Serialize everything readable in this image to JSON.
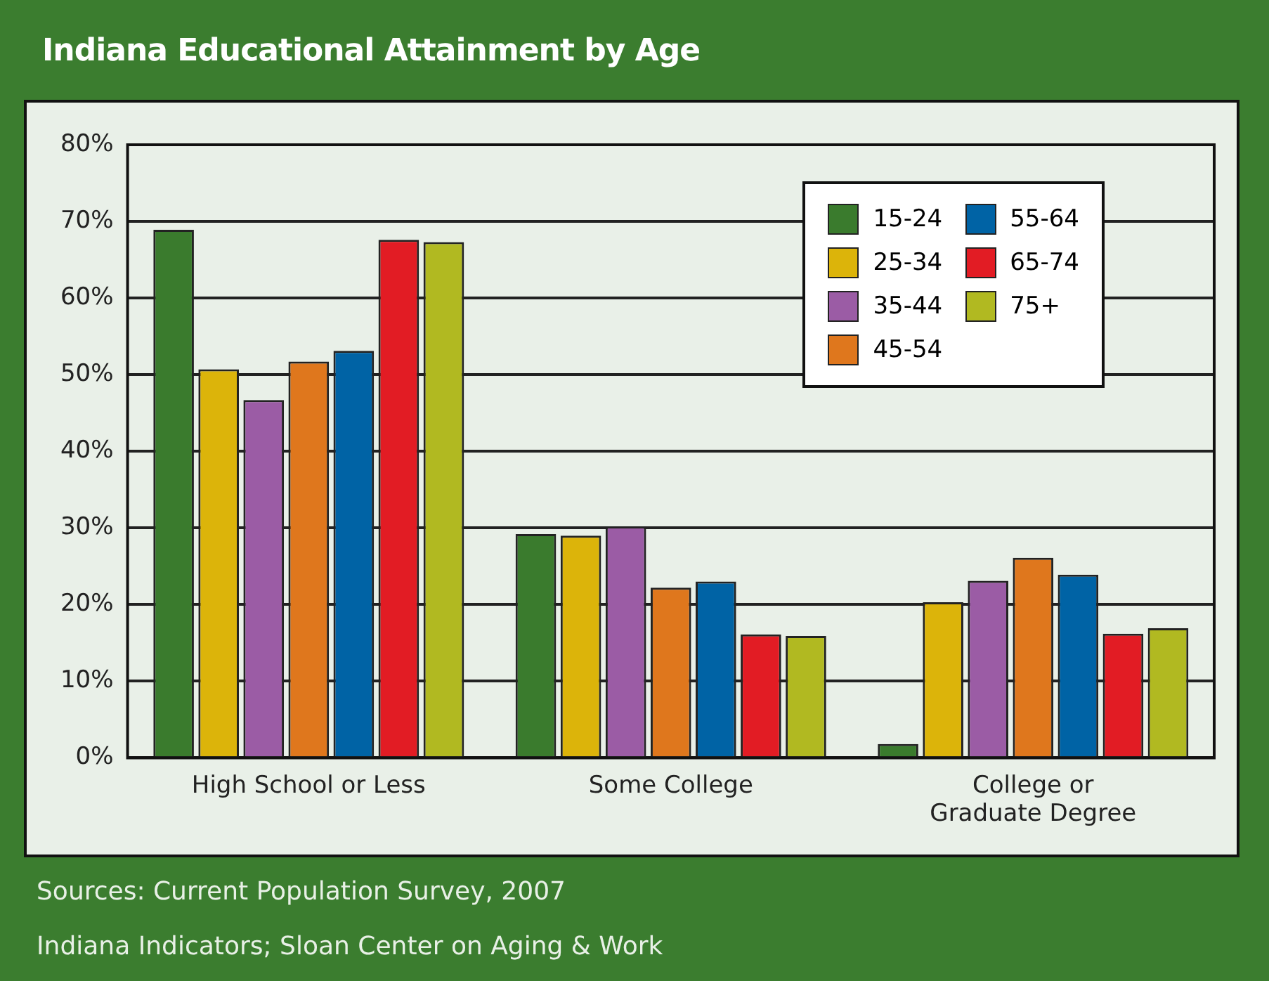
{
  "chart_data": {
    "type": "bar",
    "title": "Indiana Educational Attainment by Age",
    "categories": [
      "High School or Less",
      "Some College",
      "College or Graduate Degree"
    ],
    "series": [
      {
        "name": "15-24",
        "color": "#3a7b2d",
        "values": [
          68.9,
          29.2,
          1.8
        ]
      },
      {
        "name": "25-34",
        "color": "#dcb40a",
        "values": [
          50.7,
          29.0,
          20.3
        ]
      },
      {
        "name": "35-44",
        "color": "#9b5ca5",
        "values": [
          46.7,
          30.2,
          23.1
        ]
      },
      {
        "name": "45-54",
        "color": "#df771d",
        "values": [
          51.7,
          22.2,
          26.1
        ]
      },
      {
        "name": "55-64",
        "color": "#0063a5",
        "values": [
          53.1,
          23.0,
          23.9
        ]
      },
      {
        "name": "65-74",
        "color": "#e21c24",
        "values": [
          67.6,
          16.1,
          16.2
        ]
      },
      {
        "name": "75+",
        "color": "#b1b921",
        "values": [
          67.3,
          15.9,
          16.9
        ]
      }
    ],
    "ylim": [
      0,
      80
    ],
    "yticks": [
      {
        "value": 0,
        "label": "0%"
      },
      {
        "value": 10,
        "label": "10%"
      },
      {
        "value": 20,
        "label": "20%"
      },
      {
        "value": 30,
        "label": "30%"
      },
      {
        "value": 40,
        "label": "40%"
      },
      {
        "value": 50,
        "label": "50%"
      },
      {
        "value": 60,
        "label": "60%"
      },
      {
        "value": 70,
        "label": "70%"
      },
      {
        "value": 80,
        "label": "80%"
      }
    ],
    "grid": "y",
    "legend": "top right",
    "annotations": [
      "Sources: Current Population Survey, 2007",
      "Indiana Indicators; Sloan Center on Aging & Work"
    ]
  }
}
